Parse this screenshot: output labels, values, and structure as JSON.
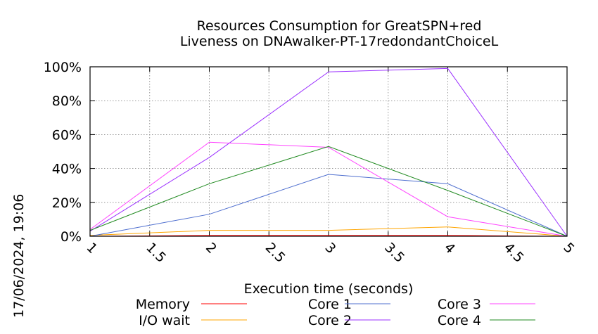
{
  "timestamp": "17/06/2024, 19:06",
  "chart_data": {
    "type": "line",
    "title": [
      "Resources Consumption for GreatSPN+red",
      "Liveness on DNAwalker-PT-17redondantChoiceL"
    ],
    "xlabel": "Execution time (seconds)",
    "ylabel": "",
    "xlim": [
      1,
      5
    ],
    "ylim": [
      0,
      100
    ],
    "x_ticks": [
      "1",
      "1.5",
      "2",
      "2.5",
      "3",
      "3.5",
      "4",
      "4.5",
      "5"
    ],
    "y_ticks": [
      "0%",
      "20%",
      "40%",
      "60%",
      "80%",
      "100%"
    ],
    "grid": true,
    "legend_position": "bottom",
    "x": [
      1,
      2,
      3,
      4,
      5
    ],
    "series": [
      {
        "name": "Memory",
        "color": "#ff0000",
        "values": [
          0,
          0.5,
          0.5,
          0.5,
          0
        ]
      },
      {
        "name": "I/O wait",
        "color": "#ffa500",
        "values": [
          0.5,
          3.5,
          3.5,
          5.5,
          0
        ]
      },
      {
        "name": "Core 1",
        "color": "#4f6fcf",
        "values": [
          0,
          13,
          36.5,
          31,
          0
        ]
      },
      {
        "name": "Core 2",
        "color": "#9b30ff",
        "values": [
          3,
          46.5,
          97,
          99,
          0
        ]
      },
      {
        "name": "Core 3",
        "color": "#ff44ff",
        "values": [
          4,
          55.5,
          52.5,
          11.5,
          0
        ]
      },
      {
        "name": "Core 4",
        "color": "#228b22",
        "values": [
          3.5,
          31,
          53,
          27,
          0
        ]
      }
    ]
  }
}
